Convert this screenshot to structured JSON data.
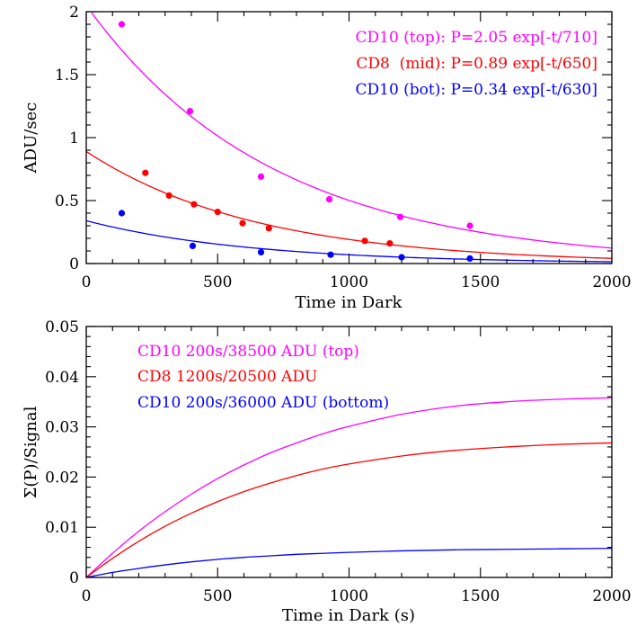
{
  "chart_data": [
    {
      "type": "scatter",
      "title": "",
      "xlabel": "Time in Dark",
      "ylabel": "ADU/sec",
      "xlim": [
        0,
        2000
      ],
      "ylim": [
        0,
        2
      ],
      "xticks": [
        "0",
        "500",
        "1000",
        "1500",
        "2000"
      ],
      "yticks": [
        "0",
        "0.5",
        "1",
        "1.5",
        "2"
      ],
      "grid": false,
      "legend_position": "top-right",
      "series": [
        {
          "name": "CD10 (top): P=2.05 exp[-t/710]",
          "color": "#ff00ff",
          "points": {
            "x": [
              135,
              395,
              665,
              925,
              1195,
              1460
            ],
            "y": [
              1.9,
              1.21,
              0.69,
              0.51,
              0.37,
              0.3
            ]
          },
          "fit": {
            "amplitude": 2.05,
            "tau": 710
          }
        },
        {
          "name": "CD8  (mid): P=0.89 exp[-t/650]",
          "color": "#ff0000",
          "points": {
            "x": [
              225,
              315,
              410,
              500,
              595,
              695,
              1060,
              1155
            ],
            "y": [
              0.72,
              0.54,
              0.47,
              0.41,
              0.32,
              0.28,
              0.18,
              0.16
            ]
          },
          "fit": {
            "amplitude": 0.89,
            "tau": 650
          }
        },
        {
          "name": "CD10 (bot): P=0.34 exp[-t/630]",
          "color": "#0000ff",
          "points": {
            "x": [
              135,
              405,
              665,
              930,
              1200,
              1460
            ],
            "y": [
              0.4,
              0.14,
              0.09,
              0.07,
              0.05,
              0.04
            ]
          },
          "fit": {
            "amplitude": 0.34,
            "tau": 630
          }
        }
      ]
    },
    {
      "type": "line",
      "title": "",
      "xlabel": "Time in Dark (s)",
      "ylabel": "Σ(P)/Signal",
      "xlim": [
        0,
        2000
      ],
      "ylim": [
        0,
        0.05
      ],
      "xticks": [
        "0",
        "500",
        "1000",
        "1500",
        "2000"
      ],
      "yticks": [
        "0",
        "0.01",
        "0.02",
        "0.03",
        "0.04",
        "0.05"
      ],
      "grid": false,
      "legend_position": "top-left",
      "series": [
        {
          "name": "CD10 200s/38500 ADU (top)",
          "color": "#ff00ff",
          "x": [
            0,
            100,
            200,
            300,
            400,
            500,
            600,
            700,
            800,
            900,
            1000,
            1200,
            1400,
            1600,
            1800,
            2000
          ],
          "y": [
            0,
            0.0048,
            0.0092,
            0.0131,
            0.0166,
            0.0197,
            0.0224,
            0.0248,
            0.0268,
            0.0286,
            0.0301,
            0.0325,
            0.0341,
            0.035,
            0.0355,
            0.0358
          ]
        },
        {
          "name": "CD8 1200s/20500 ADU",
          "color": "#ff0000",
          "x": [
            0,
            100,
            200,
            300,
            400,
            500,
            600,
            700,
            800,
            900,
            1000,
            1200,
            1400,
            1600,
            1800,
            2000
          ],
          "y": [
            0,
            0.0038,
            0.0072,
            0.0102,
            0.0128,
            0.0151,
            0.0171,
            0.0188,
            0.0203,
            0.0216,
            0.0226,
            0.0242,
            0.0253,
            0.026,
            0.0265,
            0.0268
          ]
        },
        {
          "name": "CD10 200s/36000 ADU (bottom)",
          "color": "#0000ff",
          "x": [
            0,
            100,
            200,
            300,
            400,
            500,
            600,
            700,
            800,
            900,
            1000,
            1200,
            1400,
            1600,
            1800,
            2000
          ],
          "y": [
            0,
            0.001,
            0.0018,
            0.0025,
            0.0031,
            0.0036,
            0.004,
            0.0043,
            0.0046,
            0.0048,
            0.005,
            0.0053,
            0.0055,
            0.0056,
            0.0057,
            0.0058
          ]
        }
      ]
    }
  ]
}
